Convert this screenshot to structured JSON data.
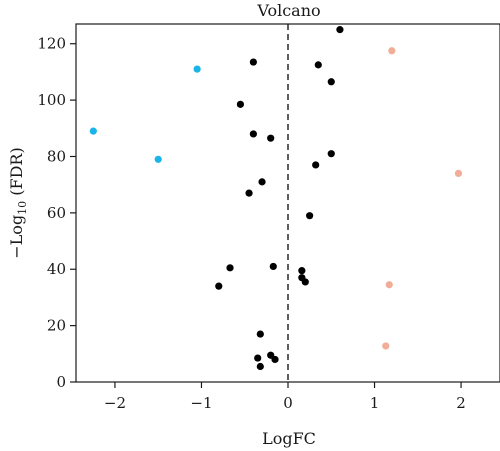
{
  "chart_data": {
    "type": "scatter",
    "title": "Volcano",
    "xlabel": "LogFC",
    "ylabel": {
      "prefix": "−Log",
      "sub": "10",
      "suffix": " (FDR)"
    },
    "xlim": [
      -2.45,
      2.45
    ],
    "ylim": [
      0,
      127
    ],
    "xticks": [
      -2,
      -1,
      0,
      1,
      2
    ],
    "yticks": [
      0,
      20,
      40,
      60,
      80,
      100,
      120
    ],
    "xtick_labels": [
      "−2",
      "−1",
      "0",
      "1",
      "2"
    ],
    "ytick_labels": [
      "0",
      "20",
      "40",
      "60",
      "80",
      "100",
      "120"
    ],
    "grid": false,
    "legend": "none",
    "reference_line": {
      "x": 0,
      "style": "dashed"
    },
    "groups": [
      {
        "color": "#1ab4e8",
        "points": [
          [
            -1.05,
            111
          ],
          [
            -2.25,
            89
          ],
          [
            -1.5,
            79
          ]
        ]
      },
      {
        "color": "#f2ad98",
        "points": [
          [
            1.2,
            117.5
          ],
          [
            1.97,
            74
          ],
          [
            1.17,
            34.5
          ],
          [
            1.13,
            12.8
          ]
        ]
      },
      {
        "color": "#000000",
        "points": [
          [
            0.6,
            125
          ],
          [
            -0.4,
            113.5
          ],
          [
            0.35,
            112.5
          ],
          [
            0.5,
            106.5
          ],
          [
            -0.55,
            98.5
          ],
          [
            -0.4,
            88
          ],
          [
            -0.2,
            86.5
          ],
          [
            0.5,
            81
          ],
          [
            0.32,
            77
          ],
          [
            -0.3,
            71
          ],
          [
            -0.45,
            67
          ],
          [
            0.25,
            59
          ],
          [
            -0.67,
            40.5
          ],
          [
            -0.17,
            41
          ],
          [
            0.16,
            39.5
          ],
          [
            0.16,
            37
          ],
          [
            0.2,
            35.5
          ],
          [
            -0.8,
            34
          ],
          [
            -0.32,
            17
          ],
          [
            -0.2,
            9.5
          ],
          [
            -0.35,
            8.5
          ],
          [
            -0.15,
            8
          ],
          [
            -0.32,
            5.5
          ]
        ]
      }
    ]
  }
}
